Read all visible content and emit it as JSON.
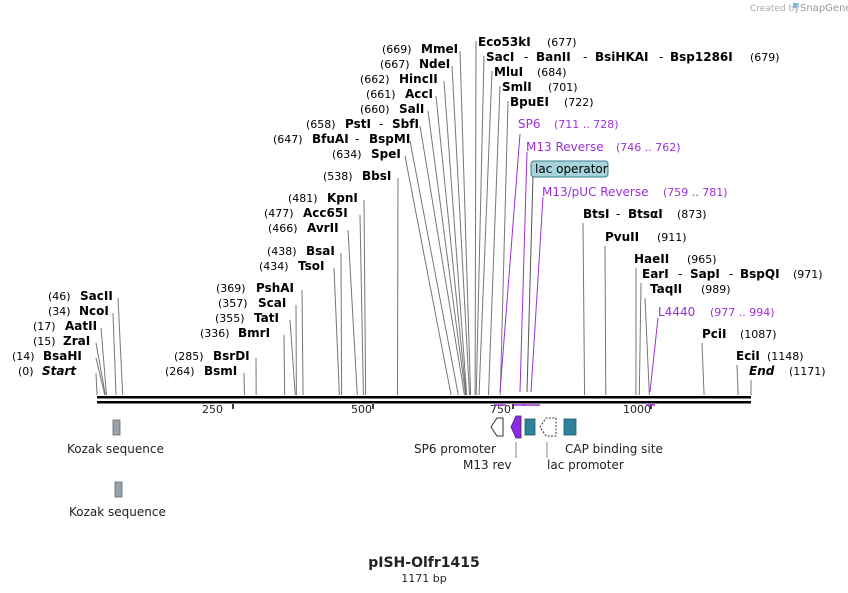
{
  "credit": {
    "prefix": "Created by",
    "brand": "SnapGene"
  },
  "plasmid": {
    "name": "pISH-Olfr1415",
    "length_label": "1171 bp",
    "length": 1171
  },
  "ruler_ticks": [
    {
      "bp": 250,
      "label": "250"
    },
    {
      "bp": 500,
      "label": "500"
    },
    {
      "bp": 750,
      "label": "750"
    },
    {
      "bp": 1000,
      "label": "1000"
    }
  ],
  "sites": [
    {
      "id": "start",
      "bp": 0,
      "pos_label": "(0)",
      "name": "Start",
      "italic": true
    },
    {
      "id": "bsahi",
      "bp": 14,
      "pos_label": "(14)",
      "name": "BsaHI"
    },
    {
      "id": "zrai",
      "bp": 15,
      "pos_label": "(15)",
      "name": "ZraI"
    },
    {
      "id": "aatii",
      "bp": 17,
      "pos_label": "(17)",
      "name": "AatII"
    },
    {
      "id": "ncoi",
      "bp": 34,
      "pos_label": "(34)",
      "name": "NcoI"
    },
    {
      "id": "sacii",
      "bp": 46,
      "pos_label": "(46)",
      "name": "SacII"
    },
    {
      "id": "bsmi",
      "bp": 264,
      "pos_label": "(264)",
      "name": "BsmI"
    },
    {
      "id": "bsrdi",
      "bp": 285,
      "pos_label": "(285)",
      "name": "BsrDI"
    },
    {
      "id": "bmri",
      "bp": 336,
      "pos_label": "(336)",
      "name": "BmrI"
    },
    {
      "id": "tati",
      "bp": 355,
      "pos_label": "(355)",
      "name": "TatI"
    },
    {
      "id": "scai",
      "bp": 357,
      "pos_label": "(357)",
      "name": "ScaI"
    },
    {
      "id": "pshai",
      "bp": 369,
      "pos_label": "(369)",
      "name": "PshAI"
    },
    {
      "id": "tsoi",
      "bp": 434,
      "pos_label": "(434)",
      "name": "TsoI"
    },
    {
      "id": "bsai",
      "bp": 438,
      "pos_label": "(438)",
      "name": "BsaI"
    },
    {
      "id": "avrii",
      "bp": 466,
      "pos_label": "(466)",
      "name": "AvrII"
    },
    {
      "id": "acc65i",
      "bp": 477,
      "pos_label": "(477)",
      "name": "Acc65I"
    },
    {
      "id": "kpni",
      "bp": 481,
      "pos_label": "(481)",
      "name": "KpnI"
    },
    {
      "id": "bbsi",
      "bp": 538,
      "pos_label": "(538)",
      "name": "BbsI"
    },
    {
      "id": "spei",
      "bp": 634,
      "pos_label": "(634)",
      "name": "SpeI"
    },
    {
      "id": "bfuai",
      "bp": 647,
      "pos_label": "(647)",
      "name": "BfuAI",
      "extra": "BspMI"
    },
    {
      "id": "psti",
      "bp": 658,
      "pos_label": "(658)",
      "name": "PstI",
      "extra": "SbfI"
    },
    {
      "id": "sali",
      "bp": 660,
      "pos_label": "(660)",
      "name": "SalI"
    },
    {
      "id": "acci",
      "bp": 661,
      "pos_label": "(661)",
      "name": "AccI"
    },
    {
      "id": "hincii",
      "bp": 662,
      "pos_label": "(662)",
      "name": "HincII"
    },
    {
      "id": "ndei",
      "bp": 667,
      "pos_label": "(667)",
      "name": "NdeI"
    },
    {
      "id": "mmei",
      "bp": 669,
      "pos_label": "(669)",
      "name": "MmeI"
    },
    {
      "id": "eco53ki",
      "bp": 677,
      "pos_label": "(677)",
      "name": "Eco53kI",
      "pos_after": true
    },
    {
      "id": "saci",
      "bp": 679,
      "pos_label": "(679)",
      "name": "SacI",
      "extra": "BanII",
      "extra2": "BsiHKAI",
      "extra3": "Bsp1286I",
      "pos_after": true
    },
    {
      "id": "mlui",
      "bp": 684,
      "pos_label": "(684)",
      "name": "MluI",
      "pos_after": true
    },
    {
      "id": "smli",
      "bp": 701,
      "pos_label": "(701)",
      "name": "SmlI",
      "pos_after": true
    },
    {
      "id": "bpuei",
      "bp": 722,
      "pos_label": "(722)",
      "name": "BpuEI",
      "pos_after": true
    },
    {
      "id": "btsi",
      "bp": 873,
      "pos_label": "(873)",
      "name": "BtsI",
      "extra": "BtsαI",
      "pos_after": true
    },
    {
      "id": "pvuii",
      "bp": 911,
      "pos_label": "(911)",
      "name": "PvuII",
      "pos_after": true
    },
    {
      "id": "haeii",
      "bp": 965,
      "pos_label": "(965)",
      "name": "HaeII",
      "pos_after": true
    },
    {
      "id": "eari",
      "bp": 971,
      "pos_label": "(971)",
      "name": "EarI",
      "extra": "SapI",
      "extra2": "BspQI",
      "pos_after": true
    },
    {
      "id": "taqii",
      "bp": 989,
      "pos_label": "(989)",
      "name": "TaqII",
      "pos_after": true
    },
    {
      "id": "pcii",
      "bp": 1087,
      "pos_label": "(1087)",
      "name": "PciI",
      "pos_after": true
    },
    {
      "id": "ecii",
      "bp": 1148,
      "pos_label": "(1148)",
      "name": "EciI",
      "pos_after": true
    },
    {
      "id": "end",
      "bp": 1171,
      "pos_label": "(1171)",
      "name": "End",
      "italic": true,
      "pos_after": true
    }
  ],
  "primers": [
    {
      "id": "sp6",
      "name": "SP6",
      "range": "(711 .. 728)"
    },
    {
      "id": "m13rev",
      "name": "M13 Reverse",
      "range": "(746 .. 762)"
    },
    {
      "id": "m13puc",
      "name": "M13/pUC Reverse",
      "range": "(759 .. 781)"
    },
    {
      "id": "l4440",
      "name": "L4440",
      "range": "(977 .. 994)"
    }
  ],
  "lac_operator": {
    "label": "lac operator",
    "fill": "#a6d3dc"
  },
  "features": [
    {
      "id": "kozak1",
      "label": "Kozak sequence",
      "color": "#9aa3ab"
    },
    {
      "id": "kozak2",
      "label": "Kozak sequence",
      "color": "#9aa3ab"
    },
    {
      "id": "sp6prom",
      "label": "SP6 promoter",
      "color": "#ffffff"
    },
    {
      "id": "m13rev",
      "label": "M13 rev",
      "color": "#8a2be2"
    },
    {
      "id": "lacprom",
      "label": "lac promoter",
      "color": "#ffffff"
    },
    {
      "id": "cap",
      "label": "CAP binding site",
      "color": "#2e8399"
    }
  ],
  "colors": {
    "primer": "#9b30d9",
    "feature_teal": "#2e8399",
    "kozak": "#9aa3ab"
  }
}
